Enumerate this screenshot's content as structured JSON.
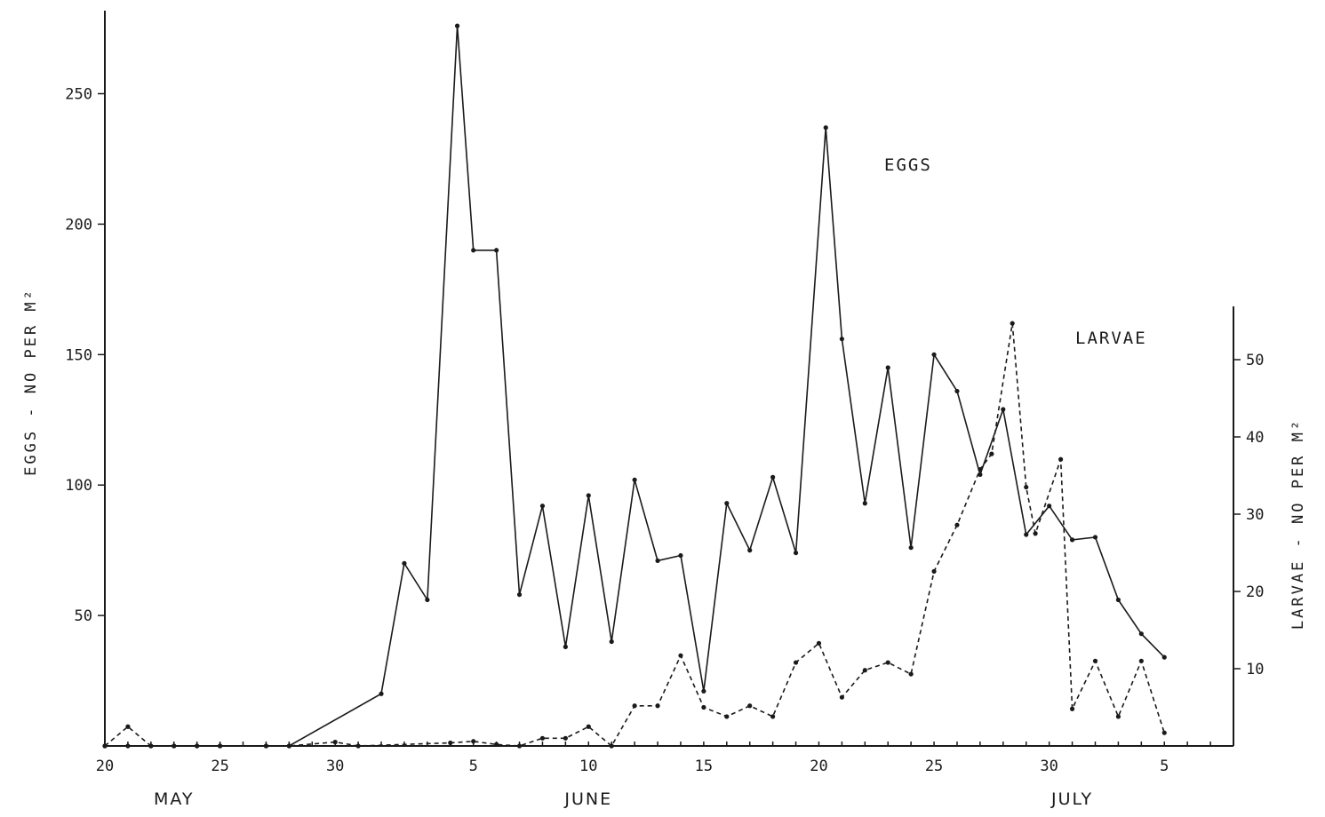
{
  "chart_data": {
    "type": "line",
    "title": "",
    "ylabel_left": "EGGS - NO PER M²",
    "ylabel_right": "LARVAE - NO PER M²",
    "y_left_ticks": [
      50,
      100,
      150,
      200,
      250
    ],
    "y_right_ticks": [
      10,
      20,
      30,
      40,
      50
    ],
    "ylim_left": [
      0,
      280
    ],
    "ylim_right": [
      0,
      57
    ],
    "x_tick_labels": [
      "20",
      "25",
      "30",
      "5",
      "10",
      "15",
      "20",
      "25",
      "30",
      "5"
    ],
    "x_tick_days": [
      0,
      5,
      10,
      16,
      21,
      26,
      31,
      36,
      41,
      46
    ],
    "xlim_days": [
      0,
      49
    ],
    "months": [
      {
        "label": "MAY",
        "center_day": 3
      },
      {
        "label": "JUNE",
        "center_day": 21
      },
      {
        "label": "JULY",
        "center_day": 42
      }
    ],
    "x_axis_start": "May 20",
    "series": [
      {
        "name": "EGGS",
        "axis": "left",
        "style": "solid",
        "points": [
          [
            0,
            0
          ],
          [
            1,
            0
          ],
          [
            2,
            0
          ],
          [
            3,
            0
          ],
          [
            4,
            0
          ],
          [
            5,
            0
          ],
          [
            7,
            0
          ],
          [
            8,
            0
          ],
          [
            12,
            20
          ],
          [
            13,
            70
          ],
          [
            14,
            56
          ],
          [
            15.3,
            276
          ],
          [
            16,
            190
          ],
          [
            17,
            190
          ],
          [
            18,
            58
          ],
          [
            19,
            92
          ],
          [
            20,
            38
          ],
          [
            21,
            96
          ],
          [
            22,
            40
          ],
          [
            23,
            102
          ],
          [
            24,
            71
          ],
          [
            25,
            73
          ],
          [
            26,
            21
          ],
          [
            27,
            93
          ],
          [
            28,
            75
          ],
          [
            29,
            103
          ],
          [
            30,
            74
          ],
          [
            31.3,
            237
          ],
          [
            32,
            156
          ],
          [
            33,
            93
          ],
          [
            34,
            145
          ],
          [
            35,
            76
          ],
          [
            36,
            150
          ],
          [
            37,
            136
          ],
          [
            38,
            104
          ],
          [
            39,
            129
          ],
          [
            40,
            81
          ],
          [
            41,
            92
          ],
          [
            42,
            79
          ],
          [
            43,
            80
          ],
          [
            44,
            56
          ],
          [
            45,
            43
          ],
          [
            46,
            34
          ]
        ]
      },
      {
        "name": "LARVAE",
        "axis": "right",
        "style": "dashed",
        "points": [
          [
            0,
            0
          ],
          [
            1,
            2.5
          ],
          [
            2,
            0
          ],
          [
            3,
            0
          ],
          [
            4,
            0
          ],
          [
            5,
            0
          ],
          [
            7,
            0
          ],
          [
            8,
            0
          ],
          [
            10,
            0.5
          ],
          [
            11,
            0
          ],
          [
            15,
            0.4
          ],
          [
            16,
            0.6
          ],
          [
            17,
            0.2
          ],
          [
            18,
            0
          ],
          [
            19,
            1
          ],
          [
            20,
            1
          ],
          [
            21,
            2.5
          ],
          [
            22,
            0
          ],
          [
            23,
            5.2
          ],
          [
            24,
            5.2
          ],
          [
            25,
            11.7
          ],
          [
            26,
            5
          ],
          [
            27,
            3.8
          ],
          [
            28,
            5.2
          ],
          [
            29,
            3.8
          ],
          [
            30,
            10.8
          ],
          [
            31,
            13.3
          ],
          [
            32,
            6.3
          ],
          [
            33,
            9.8
          ],
          [
            34,
            10.8
          ],
          [
            35,
            9.3
          ],
          [
            36,
            22.6
          ],
          [
            37,
            28.6
          ],
          [
            38,
            35.8
          ],
          [
            38.5,
            37.8
          ],
          [
            39.4,
            54.7
          ],
          [
            40,
            33.5
          ],
          [
            40.4,
            27.5
          ],
          [
            41.5,
            37.1
          ],
          [
            42,
            4.8
          ],
          [
            43,
            11
          ],
          [
            44,
            3.8
          ],
          [
            45,
            11
          ],
          [
            46,
            1.7
          ]
        ]
      }
    ],
    "annotations": [
      "EGGS",
      "LARVAE"
    ],
    "grid": false,
    "legend": "inline labels"
  }
}
